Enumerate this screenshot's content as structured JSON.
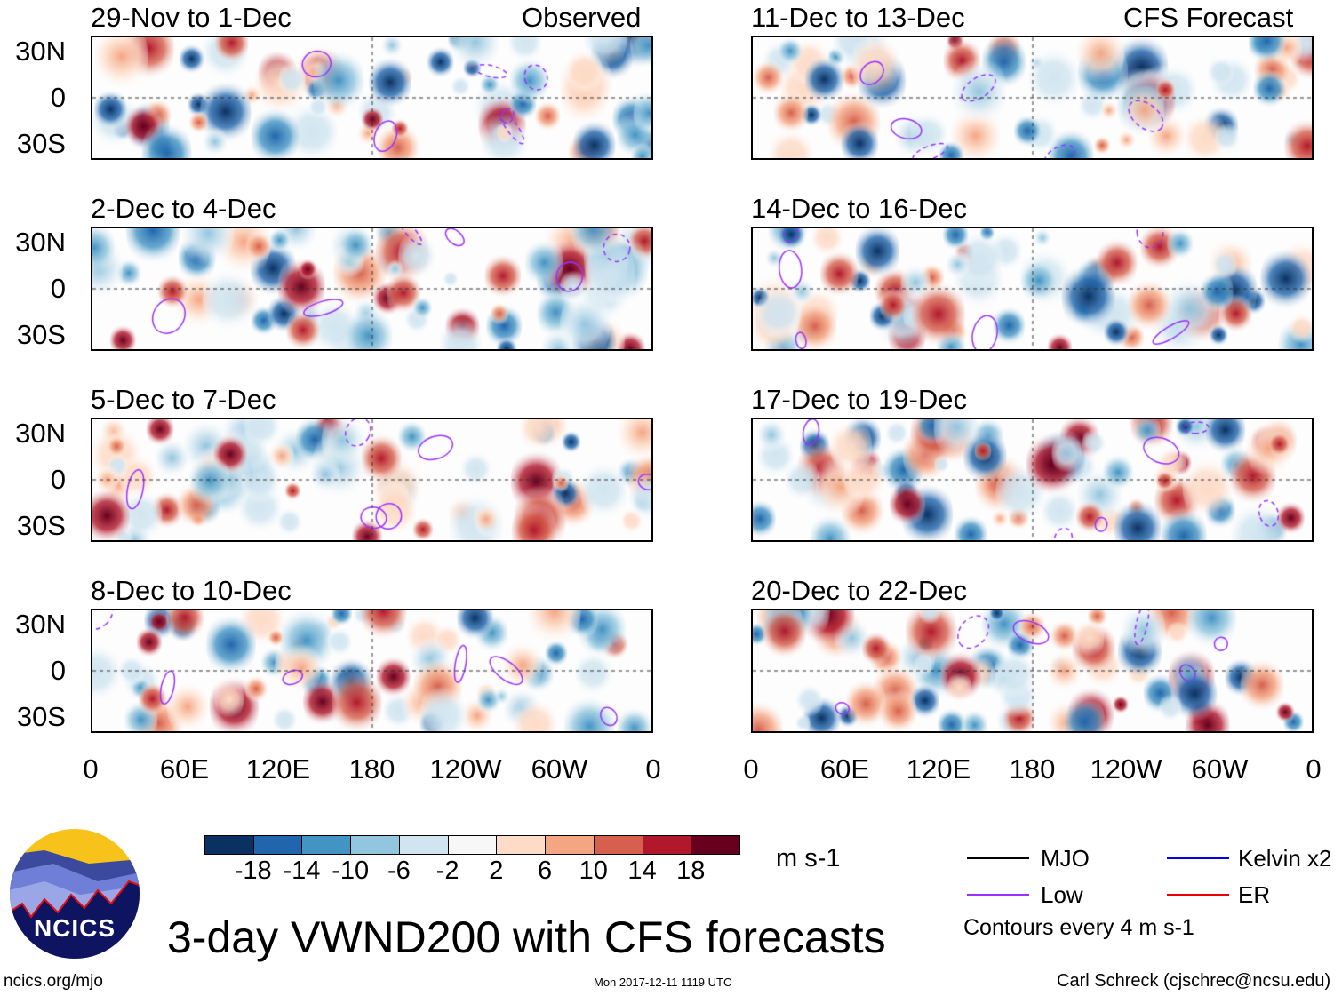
{
  "title": "3-day VWND200 with CFS forecasts",
  "headers": {
    "observed": "Observed",
    "forecast": "CFS Forecast"
  },
  "panels": [
    {
      "title": "29-Nov to 1-Dec",
      "group": "observed"
    },
    {
      "title": "2-Dec to 4-Dec",
      "group": "observed"
    },
    {
      "title": "5-Dec to 7-Dec",
      "group": "observed"
    },
    {
      "title": "8-Dec to 10-Dec",
      "group": "observed"
    },
    {
      "title": "11-Dec to 13-Dec",
      "group": "forecast"
    },
    {
      "title": "14-Dec to 16-Dec",
      "group": "forecast"
    },
    {
      "title": "17-Dec to 19-Dec",
      "group": "forecast"
    },
    {
      "title": "20-Dec to 22-Dec",
      "group": "forecast"
    }
  ],
  "lat_labels": [
    "30N",
    "0",
    "30S"
  ],
  "lon_labels": [
    "0",
    "60E",
    "120E",
    "180",
    "120W",
    "60W",
    "0"
  ],
  "colorbar": {
    "units": "m s-1",
    "labels": [
      "-18",
      "-14",
      "-10",
      "-6",
      "-2",
      "2",
      "6",
      "10",
      "14",
      "18"
    ],
    "colors": [
      "#0a3162",
      "#2166ac",
      "#4393c3",
      "#92c5de",
      "#d1e5f0",
      "#f7f7f7",
      "#fddbc7",
      "#f4a582",
      "#d6604d",
      "#b2182b",
      "#67001f"
    ]
  },
  "legend": {
    "items": [
      {
        "label": "MJO",
        "color": "#000000"
      },
      {
        "label": "Kelvin x2",
        "color": "#0000ee"
      },
      {
        "label": "Low",
        "color": "#9b30ff"
      },
      {
        "label": "ER",
        "color": "#ee0000"
      }
    ],
    "note": "Contours every 4 m s-1"
  },
  "logo": {
    "text": "NCICS"
  },
  "footer": {
    "url": "ncics.org/mjo",
    "timestamp": "Mon 2017-12-11 1119 UTC",
    "credit": "Carl Schreck (cjschrec@ncsu.edu)"
  }
}
